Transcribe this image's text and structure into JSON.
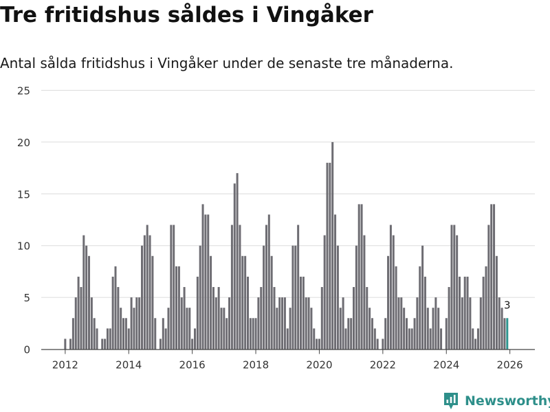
{
  "header": {
    "title": "Tre fritidshus såldes i Vingåker",
    "subtitle": "Antal sålda fritidshus i Vingåker under de senaste tre månaderna."
  },
  "branding": {
    "name": "Newsworthy",
    "icon": "newsworthy-logo-icon",
    "color": "#2e8f8a"
  },
  "chart_data": {
    "type": "bar",
    "title": "Tre fritidshus såldes i Vingåker",
    "subtitle": "Antal sålda fritidshus i Vingåker under de senaste tre månaderna.",
    "xlabel": "",
    "ylabel": "",
    "ylim": [
      0,
      25
    ],
    "yticks": [
      0,
      5,
      10,
      15,
      20,
      25
    ],
    "xticks": [
      "2012",
      "2014",
      "2016",
      "2018",
      "2020",
      "2022",
      "2024",
      "2026"
    ],
    "grid": true,
    "start": "2011-12",
    "bar_color": "#6d6c72",
    "highlight_color": "#2e9690",
    "highlight_label": "3",
    "values": [
      0,
      1,
      0,
      1,
      3,
      5,
      7,
      6,
      11,
      10,
      9,
      5,
      3,
      2,
      0,
      1,
      1,
      2,
      2,
      7,
      8,
      6,
      4,
      3,
      3,
      2,
      5,
      4,
      5,
      5,
      10,
      11,
      12,
      11,
      9,
      3,
      0,
      1,
      3,
      2,
      4,
      12,
      12,
      8,
      8,
      5,
      6,
      4,
      4,
      1,
      2,
      7,
      10,
      14,
      13,
      13,
      9,
      6,
      5,
      6,
      4,
      4,
      3,
      5,
      12,
      16,
      17,
      12,
      9,
      9,
      7,
      3,
      3,
      3,
      5,
      6,
      10,
      12,
      13,
      9,
      6,
      4,
      5,
      5,
      5,
      2,
      4,
      10,
      10,
      12,
      7,
      7,
      5,
      5,
      4,
      2,
      1,
      1,
      6,
      11,
      18,
      18,
      20,
      13,
      10,
      4,
      5,
      2,
      3,
      3,
      6,
      10,
      14,
      14,
      11,
      6,
      4,
      3,
      2,
      1,
      0,
      1,
      3,
      9,
      12,
      11,
      8,
      5,
      5,
      4,
      3,
      2,
      2,
      3,
      5,
      8,
      10,
      7,
      4,
      2,
      4,
      5,
      4,
      2,
      0,
      3,
      6,
      12,
      12,
      11,
      7,
      5,
      7,
      7,
      5,
      2,
      1,
      2,
      5,
      7,
      8,
      12,
      14,
      14,
      9,
      5,
      4,
      3,
      3
    ]
  }
}
